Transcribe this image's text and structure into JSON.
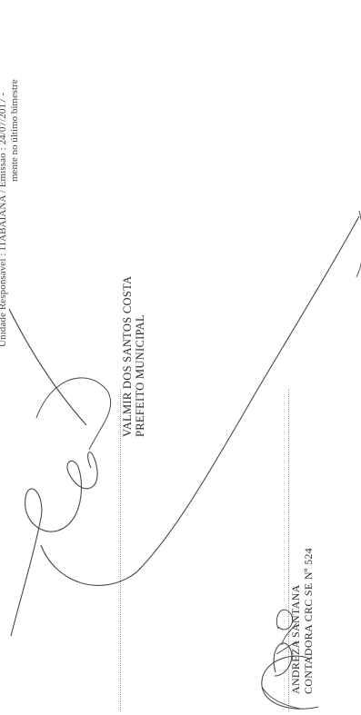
{
  "header": {
    "line1": "Unidade Responsável : ITABAIANA / Emissão : 24/07/2017 -",
    "line2": "mente no último bimestre"
  },
  "signatories": [
    {
      "name": "VALMIR DOS SANTOS COSTA",
      "role": "PREFEITO MUNICIPAL"
    },
    {
      "name": "ANDREZA SANTANA",
      "role": "CONTADORA CRC SE Nº 524"
    }
  ]
}
